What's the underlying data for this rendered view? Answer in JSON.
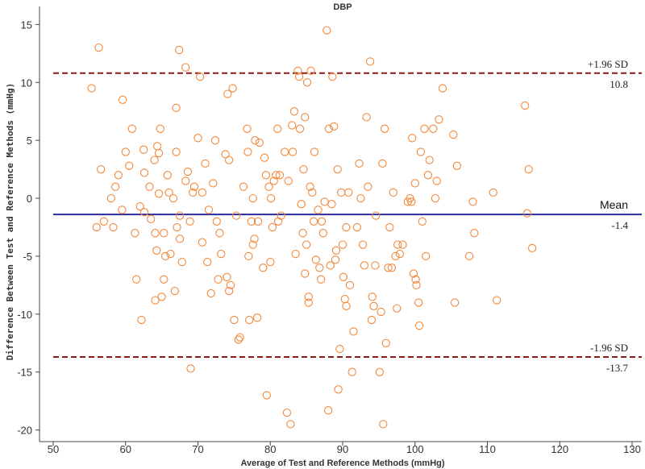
{
  "chart_data": {
    "type": "scatter",
    "title": "DBP",
    "xlabel": "Average of Test and Reference Methods (mmHg)",
    "ylabel": "Difference Between Test and Reference Methods (mmHg)",
    "xlim": [
      50,
      130
    ],
    "ylim": [
      -21,
      16
    ],
    "xticks": [
      50,
      60,
      70,
      80,
      90,
      100,
      110,
      120,
      130
    ],
    "yticks": [
      -20,
      -15,
      -10,
      -5,
      0,
      5,
      10,
      15
    ],
    "grid": false,
    "reference_lines": [
      {
        "name": "upper-loa",
        "label": "+1.96 SD",
        "value_label": "10.8",
        "value": 10.8,
        "style": "dashed",
        "color": "#8b1a1a"
      },
      {
        "name": "mean",
        "label": "Mean",
        "value_label": "-1.4",
        "value": -1.4,
        "style": "solid",
        "color": "#2b2b9a"
      },
      {
        "name": "lower-loa",
        "label": "-1.96 SD",
        "value_label": "-13.7",
        "value": -13.7,
        "style": "dashed",
        "color": "#8b1a1a"
      }
    ],
    "marker": {
      "shape": "open-circle",
      "color": "#f2883a"
    },
    "series": [
      {
        "name": "DBP differences",
        "points": [
          [
            55.3,
            9.5
          ],
          [
            56.3,
            13.0
          ],
          [
            56.6,
            2.5
          ],
          [
            56.0,
            -2.5
          ],
          [
            57.0,
            -2.0
          ],
          [
            58.0,
            0.0
          ],
          [
            58.6,
            1.0
          ],
          [
            58.3,
            -2.5
          ],
          [
            59.0,
            2.0
          ],
          [
            59.5,
            -1.0
          ],
          [
            59.6,
            8.5
          ],
          [
            60.0,
            4.0
          ],
          [
            60.5,
            2.8
          ],
          [
            60.9,
            6.0
          ],
          [
            61.3,
            -3.0
          ],
          [
            61.5,
            -7.0
          ],
          [
            62.0,
            -0.7
          ],
          [
            62.2,
            -10.5
          ],
          [
            62.5,
            4.2
          ],
          [
            62.6,
            2.2
          ],
          [
            62.6,
            -1.2
          ],
          [
            63.3,
            1.0
          ],
          [
            63.5,
            -1.8
          ],
          [
            64.0,
            3.3
          ],
          [
            64.1,
            -3.0
          ],
          [
            64.3,
            -4.5
          ],
          [
            64.1,
            -8.8
          ],
          [
            64.4,
            4.5
          ],
          [
            64.6,
            3.9
          ],
          [
            64.6,
            0.4
          ],
          [
            64.8,
            6.0
          ],
          [
            65.0,
            -8.5
          ],
          [
            65.3,
            -3.0
          ],
          [
            65.5,
            -5.0
          ],
          [
            65.3,
            -7.0
          ],
          [
            65.8,
            2.0
          ],
          [
            66.0,
            0.5
          ],
          [
            66.2,
            -4.8
          ],
          [
            66.6,
            0.0
          ],
          [
            66.8,
            -8.0
          ],
          [
            67.0,
            7.8
          ],
          [
            67.0,
            4.0
          ],
          [
            67.1,
            -2.5
          ],
          [
            67.4,
            12.8
          ],
          [
            67.5,
            -1.5
          ],
          [
            67.5,
            -3.5
          ],
          [
            67.8,
            -5.5
          ],
          [
            68.3,
            11.3
          ],
          [
            68.3,
            1.5
          ],
          [
            68.6,
            2.3
          ],
          [
            68.9,
            -2.0
          ],
          [
            69.0,
            -14.7
          ],
          [
            69.3,
            0.5
          ],
          [
            69.5,
            1.0
          ],
          [
            70.0,
            5.2
          ],
          [
            70.3,
            10.5
          ],
          [
            70.6,
            0.5
          ],
          [
            70.6,
            -3.8
          ],
          [
            71.0,
            3.0
          ],
          [
            71.3,
            -5.5
          ],
          [
            71.5,
            -1.0
          ],
          [
            71.8,
            -8.2
          ],
          [
            72.1,
            1.3
          ],
          [
            72.4,
            5.0
          ],
          [
            72.6,
            -2.0
          ],
          [
            72.8,
            -7.0
          ],
          [
            73.0,
            -3.0
          ],
          [
            73.2,
            -4.8
          ],
          [
            73.8,
            3.8
          ],
          [
            74.0,
            -6.8
          ],
          [
            74.1,
            9.0
          ],
          [
            74.3,
            3.3
          ],
          [
            74.5,
            -7.5
          ],
          [
            74.3,
            -8.0
          ],
          [
            74.8,
            9.5
          ],
          [
            75.0,
            -10.5
          ],
          [
            75.3,
            -1.5
          ],
          [
            75.6,
            -12.2
          ],
          [
            75.8,
            -12.0
          ],
          [
            76.3,
            1.0
          ],
          [
            76.8,
            6.0
          ],
          [
            76.9,
            4.0
          ],
          [
            77.0,
            -5.0
          ],
          [
            77.1,
            -10.5
          ],
          [
            77.4,
            -2.0
          ],
          [
            77.6,
            -4.0
          ],
          [
            77.6,
            0.0
          ],
          [
            77.8,
            -3.5
          ],
          [
            77.9,
            5.0
          ],
          [
            78.2,
            -10.3
          ],
          [
            78.3,
            -2.0
          ],
          [
            78.5,
            4.8
          ],
          [
            79.0,
            -6.0
          ],
          [
            79.2,
            3.5
          ],
          [
            79.4,
            2.0
          ],
          [
            79.5,
            -17.0
          ],
          [
            79.8,
            1.0
          ],
          [
            80.0,
            -5.5
          ],
          [
            80.1,
            0.0
          ],
          [
            80.3,
            -2.5
          ],
          [
            80.5,
            1.5
          ],
          [
            80.8,
            2.0
          ],
          [
            81.0,
            6.0
          ],
          [
            81.1,
            -2.0
          ],
          [
            81.3,
            2.0
          ],
          [
            81.5,
            -1.5
          ],
          [
            82.0,
            4.0
          ],
          [
            82.3,
            -18.5
          ],
          [
            82.5,
            1.5
          ],
          [
            82.8,
            -19.5
          ],
          [
            83.0,
            6.3
          ],
          [
            83.1,
            4.0
          ],
          [
            83.3,
            7.5
          ],
          [
            83.5,
            -4.8
          ],
          [
            83.8,
            11.0
          ],
          [
            84.0,
            10.5
          ],
          [
            84.1,
            6.0
          ],
          [
            84.3,
            -0.5
          ],
          [
            84.5,
            -3.0
          ],
          [
            84.6,
            2.5
          ],
          [
            84.8,
            7.0
          ],
          [
            84.8,
            -6.5
          ],
          [
            85.0,
            -4.0
          ],
          [
            85.1,
            10.0
          ],
          [
            85.3,
            -8.5
          ],
          [
            85.3,
            -9.0
          ],
          [
            85.5,
            1.0
          ],
          [
            85.6,
            11.0
          ],
          [
            85.8,
            0.5
          ],
          [
            86.0,
            -2.0
          ],
          [
            86.1,
            4.0
          ],
          [
            86.3,
            -5.3
          ],
          [
            86.6,
            -1.0
          ],
          [
            86.8,
            -6.0
          ],
          [
            87.0,
            -7.0
          ],
          [
            87.1,
            -2.0
          ],
          [
            87.3,
            -3.0
          ],
          [
            87.5,
            -0.3
          ],
          [
            87.8,
            14.5
          ],
          [
            88.0,
            -18.3
          ],
          [
            88.1,
            6.0
          ],
          [
            88.3,
            -5.8
          ],
          [
            88.5,
            -0.5
          ],
          [
            88.6,
            10.5
          ],
          [
            88.8,
            6.2
          ],
          [
            89.0,
            -5.3
          ],
          [
            89.1,
            -4.5
          ],
          [
            89.3,
            2.5
          ],
          [
            89.4,
            -16.5
          ],
          [
            89.6,
            -13.0
          ],
          [
            89.8,
            0.5
          ],
          [
            90.0,
            -4.0
          ],
          [
            90.1,
            -6.8
          ],
          [
            90.3,
            -8.7
          ],
          [
            90.5,
            -2.5
          ],
          [
            90.5,
            -9.3
          ],
          [
            90.8,
            0.5
          ],
          [
            91.0,
            -7.5
          ],
          [
            91.3,
            -15.0
          ],
          [
            91.5,
            -11.5
          ],
          [
            92.0,
            -2.5
          ],
          [
            92.3,
            3.0
          ],
          [
            92.5,
            0.0
          ],
          [
            92.8,
            -4.0
          ],
          [
            93.0,
            -5.8
          ],
          [
            93.3,
            7.0
          ],
          [
            93.5,
            1.0
          ],
          [
            93.8,
            11.8
          ],
          [
            94.0,
            -10.5
          ],
          [
            94.1,
            -8.5
          ],
          [
            94.3,
            -9.3
          ],
          [
            94.5,
            -5.8
          ],
          [
            94.6,
            -1.5
          ],
          [
            95.1,
            -15.0
          ],
          [
            95.3,
            -9.8
          ],
          [
            95.5,
            3.0
          ],
          [
            95.6,
            -19.5
          ],
          [
            95.8,
            6.0
          ],
          [
            96.0,
            -12.5
          ],
          [
            96.3,
            -6.0
          ],
          [
            96.5,
            -2.5
          ],
          [
            96.8,
            -6.0
          ],
          [
            97.0,
            0.5
          ],
          [
            97.3,
            -5.0
          ],
          [
            97.5,
            -9.5
          ],
          [
            97.6,
            -4.0
          ],
          [
            97.9,
            -4.8
          ],
          [
            98.3,
            -4.0
          ],
          [
            99.0,
            -0.3
          ],
          [
            99.3,
            0.0
          ],
          [
            99.5,
            -0.3
          ],
          [
            99.6,
            5.2
          ],
          [
            99.8,
            -6.5
          ],
          [
            100.0,
            1.3
          ],
          [
            100.1,
            -7.0
          ],
          [
            100.2,
            -7.5
          ],
          [
            100.5,
            -9.0
          ],
          [
            100.6,
            -11.0
          ],
          [
            100.8,
            4.0
          ],
          [
            101.0,
            -2.0
          ],
          [
            101.3,
            6.0
          ],
          [
            101.5,
            -5.0
          ],
          [
            101.8,
            2.0
          ],
          [
            102.0,
            3.3
          ],
          [
            102.5,
            6.0
          ],
          [
            102.8,
            0.0
          ],
          [
            103.0,
            1.5
          ],
          [
            103.3,
            6.8
          ],
          [
            103.8,
            9.5
          ],
          [
            105.3,
            5.5
          ],
          [
            105.5,
            -9.0
          ],
          [
            105.8,
            2.8
          ],
          [
            107.5,
            -5.0
          ],
          [
            108.0,
            -0.3
          ],
          [
            108.2,
            -3.0
          ],
          [
            110.8,
            0.5
          ],
          [
            111.3,
            -8.8
          ],
          [
            115.2,
            8.0
          ],
          [
            115.5,
            -1.3
          ],
          [
            115.7,
            2.5
          ],
          [
            116.2,
            -4.3
          ]
        ]
      }
    ]
  }
}
